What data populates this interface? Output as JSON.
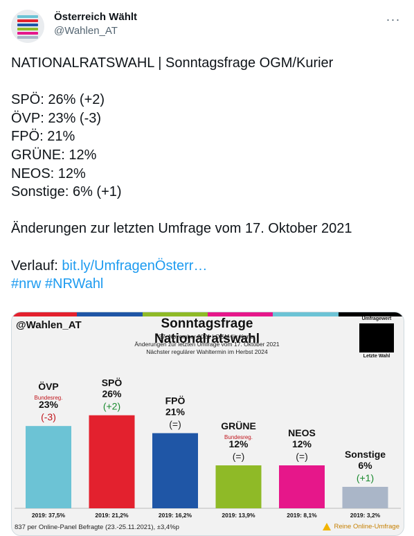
{
  "tweet": {
    "author_name": "Österreich Wählt",
    "author_handle": "@Wahlen_AT",
    "more_label": "···",
    "lines": [
      "NATIONALRATSWAHL | Sonntagsfrage OGM/Kurier",
      "",
      "SPÖ: 26% (+2)",
      "ÖVP: 23% (-3)",
      "FPÖ: 21%",
      "GRÜNE: 12%",
      "NEOS: 12%",
      "Sonstige: 6% (+1)",
      "",
      "Änderungen zur letzten Umfrage vom 17. Oktober 2021",
      ""
    ],
    "verlauf_label": "Verlauf: ",
    "verlauf_link": "bit.ly/UmfragenÖsterr…",
    "hashtags": "#nrw #NRWahl"
  },
  "graphic": {
    "brand": "@Wahlen_AT",
    "title": "Sonntagsfrage Nationalratswahl",
    "subtitle_1": "27. November 2021 | OGM für Kurier",
    "subtitle_2": "Änderungen zur letzten Umfrage vom 17. Oktober 2021",
    "subtitle_3": "Nächster regulärer Wahltermin im Herbst 2024",
    "legend_top": "Umfragewert",
    "legend_bottom": "Letzte Wahl",
    "footer_left": "837 per Online-Panel Befragte (23.-25.11.2021), ±3,4%p",
    "footer_right": "Reine Online-Umfrage",
    "stripe_colors": [
      "#e3212e",
      "#1f56a6",
      "#8fba27",
      "#e6178a",
      "#6cc3d5",
      "#000000"
    ]
  },
  "chart_data": {
    "type": "bar",
    "title": "Sonntagsfrage Nationalratswahl",
    "categories": [
      "ÖVP",
      "SPÖ",
      "FPÖ",
      "GRÜNE",
      "NEOS",
      "Sonstige"
    ],
    "values": [
      23,
      26,
      21,
      12,
      12,
      6
    ],
    "value_labels": [
      "23%",
      "26%",
      "21%",
      "12%",
      "12%",
      "6%"
    ],
    "changes": [
      "(-3)",
      "(+2)",
      "(=)",
      "(=)",
      "(=)",
      "(+1)"
    ],
    "change_colors": [
      "#c0141b",
      "#1a8a2e",
      "#222222",
      "#222222",
      "#222222",
      "#1a8a2e"
    ],
    "notes": [
      "Bundesreg.",
      "",
      "",
      "Bundesreg.",
      "",
      ""
    ],
    "previous_election": [
      "2019: 37,5%",
      "2019: 21,2%",
      "2019: 16,2%",
      "2019: 13,9%",
      "2019: 8,1%",
      "2019: 3,2%"
    ],
    "colors": [
      "#6cc3d5",
      "#e3212e",
      "#1f56a6",
      "#8fba27",
      "#e6178a",
      "#aab6c8"
    ],
    "ylim": [
      0,
      30
    ]
  }
}
